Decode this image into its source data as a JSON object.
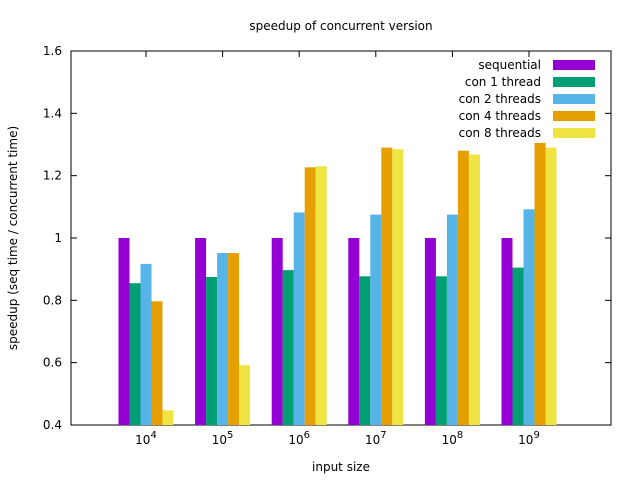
{
  "chart_data": {
    "type": "bar",
    "title": "speedup of concurrent version",
    "xlabel": "input size",
    "ylabel": "speedup (seq time / concurrent time)",
    "ylim": [
      0.4,
      1.6
    ],
    "yticks": [
      "0.4",
      "0.6",
      "0.8",
      "1",
      "1.2",
      "1.4",
      "1.6"
    ],
    "categories": [
      {
        "base": "10",
        "exp": "4"
      },
      {
        "base": "10",
        "exp": "5"
      },
      {
        "base": "10",
        "exp": "6"
      },
      {
        "base": "10",
        "exp": "7"
      },
      {
        "base": "10",
        "exp": "8"
      },
      {
        "base": "10",
        "exp": "9"
      }
    ],
    "legend_position": "top-right",
    "grid": false,
    "series": [
      {
        "name": "sequential",
        "color": "#9400d3",
        "values": [
          1.0,
          1.0,
          1.0,
          1.0,
          1.0,
          1.0
        ]
      },
      {
        "name": "con 1 thread",
        "color": "#009e73",
        "values": [
          0.855,
          0.875,
          0.897,
          0.877,
          0.877,
          0.905
        ]
      },
      {
        "name": "con 2 threads",
        "color": "#56b4e9",
        "values": [
          0.917,
          0.952,
          1.082,
          1.075,
          1.075,
          1.092
        ]
      },
      {
        "name": "con 4 threads",
        "color": "#e69f00",
        "values": [
          0.797,
          0.952,
          1.227,
          1.29,
          1.28,
          1.305
        ]
      },
      {
        "name": "con 8 threads",
        "color": "#f0e442",
        "values": [
          0.447,
          0.592,
          1.23,
          1.285,
          1.268,
          1.29
        ]
      }
    ]
  }
}
